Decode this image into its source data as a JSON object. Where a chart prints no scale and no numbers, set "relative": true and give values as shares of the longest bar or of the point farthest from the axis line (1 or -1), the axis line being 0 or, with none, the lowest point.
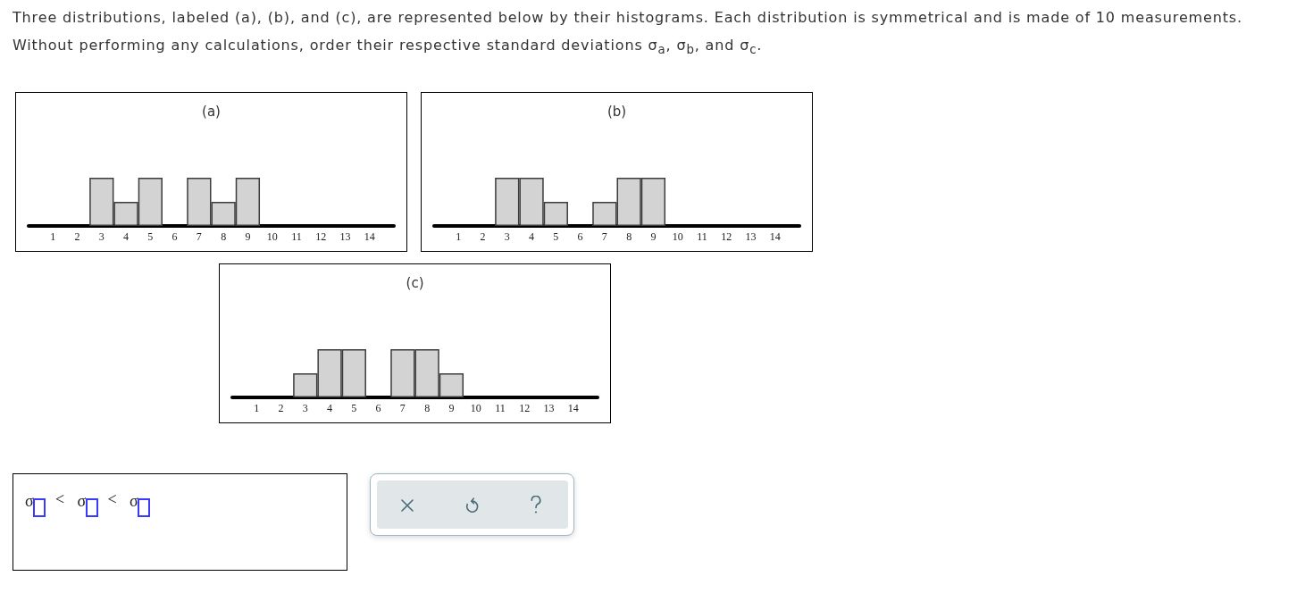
{
  "chart_data": [
    {
      "type": "other",
      "annotations": [
        "Three distributions, labeled (a), (b), and (c), are represented below by their histograms. Each distribution is symmetrical and is made of 10 measurements.",
        "Without performing any calculations, order their respective standard deviations σ$_{a}$, σ$_{b}$, and σ$_{c}$."
      ]
    },
    {
      "type": "bar",
      "title": "(a)",
      "x": [
        3,
        4,
        5,
        7,
        8,
        9
      ],
      "values": [
        1,
        0.5,
        1,
        1,
        0.5,
        1
      ],
      "relative": true,
      "color": "#d3d3d3",
      "xlim": [
        0,
        15
      ],
      "xticks": [
        1,
        2,
        3,
        4,
        5,
        6,
        7,
        8,
        9,
        10,
        11,
        12,
        13,
        14
      ],
      "tick_labels": "x"
    },
    {
      "type": "bar",
      "title": "(b)",
      "x": [
        3,
        4,
        5,
        7,
        8,
        9
      ],
      "values": [
        1,
        1,
        0.5,
        0.5,
        1,
        1
      ],
      "relative": true,
      "color": "#d3d3d3",
      "xlim": [
        0,
        15
      ],
      "xticks": [
        1,
        2,
        3,
        4,
        5,
        6,
        7,
        8,
        9,
        10,
        11,
        12,
        13,
        14
      ],
      "tick_labels": "x"
    },
    {
      "type": "bar",
      "title": "(c)",
      "x": [
        3,
        4,
        5,
        7,
        8,
        9
      ],
      "values": [
        0.5,
        1,
        1,
        1,
        1,
        0.5
      ],
      "relative": true,
      "color": "#d3d3d3",
      "xlim": [
        0,
        15
      ],
      "xticks": [
        1,
        2,
        3,
        4,
        5,
        6,
        7,
        8,
        9,
        10,
        11,
        12,
        13,
        14
      ],
      "tick_labels": "x"
    },
    {
      "type": "other",
      "annotations": [
        "σ",
        "<",
        "σ",
        "<",
        "σ"
      ]
    }
  ]
}
